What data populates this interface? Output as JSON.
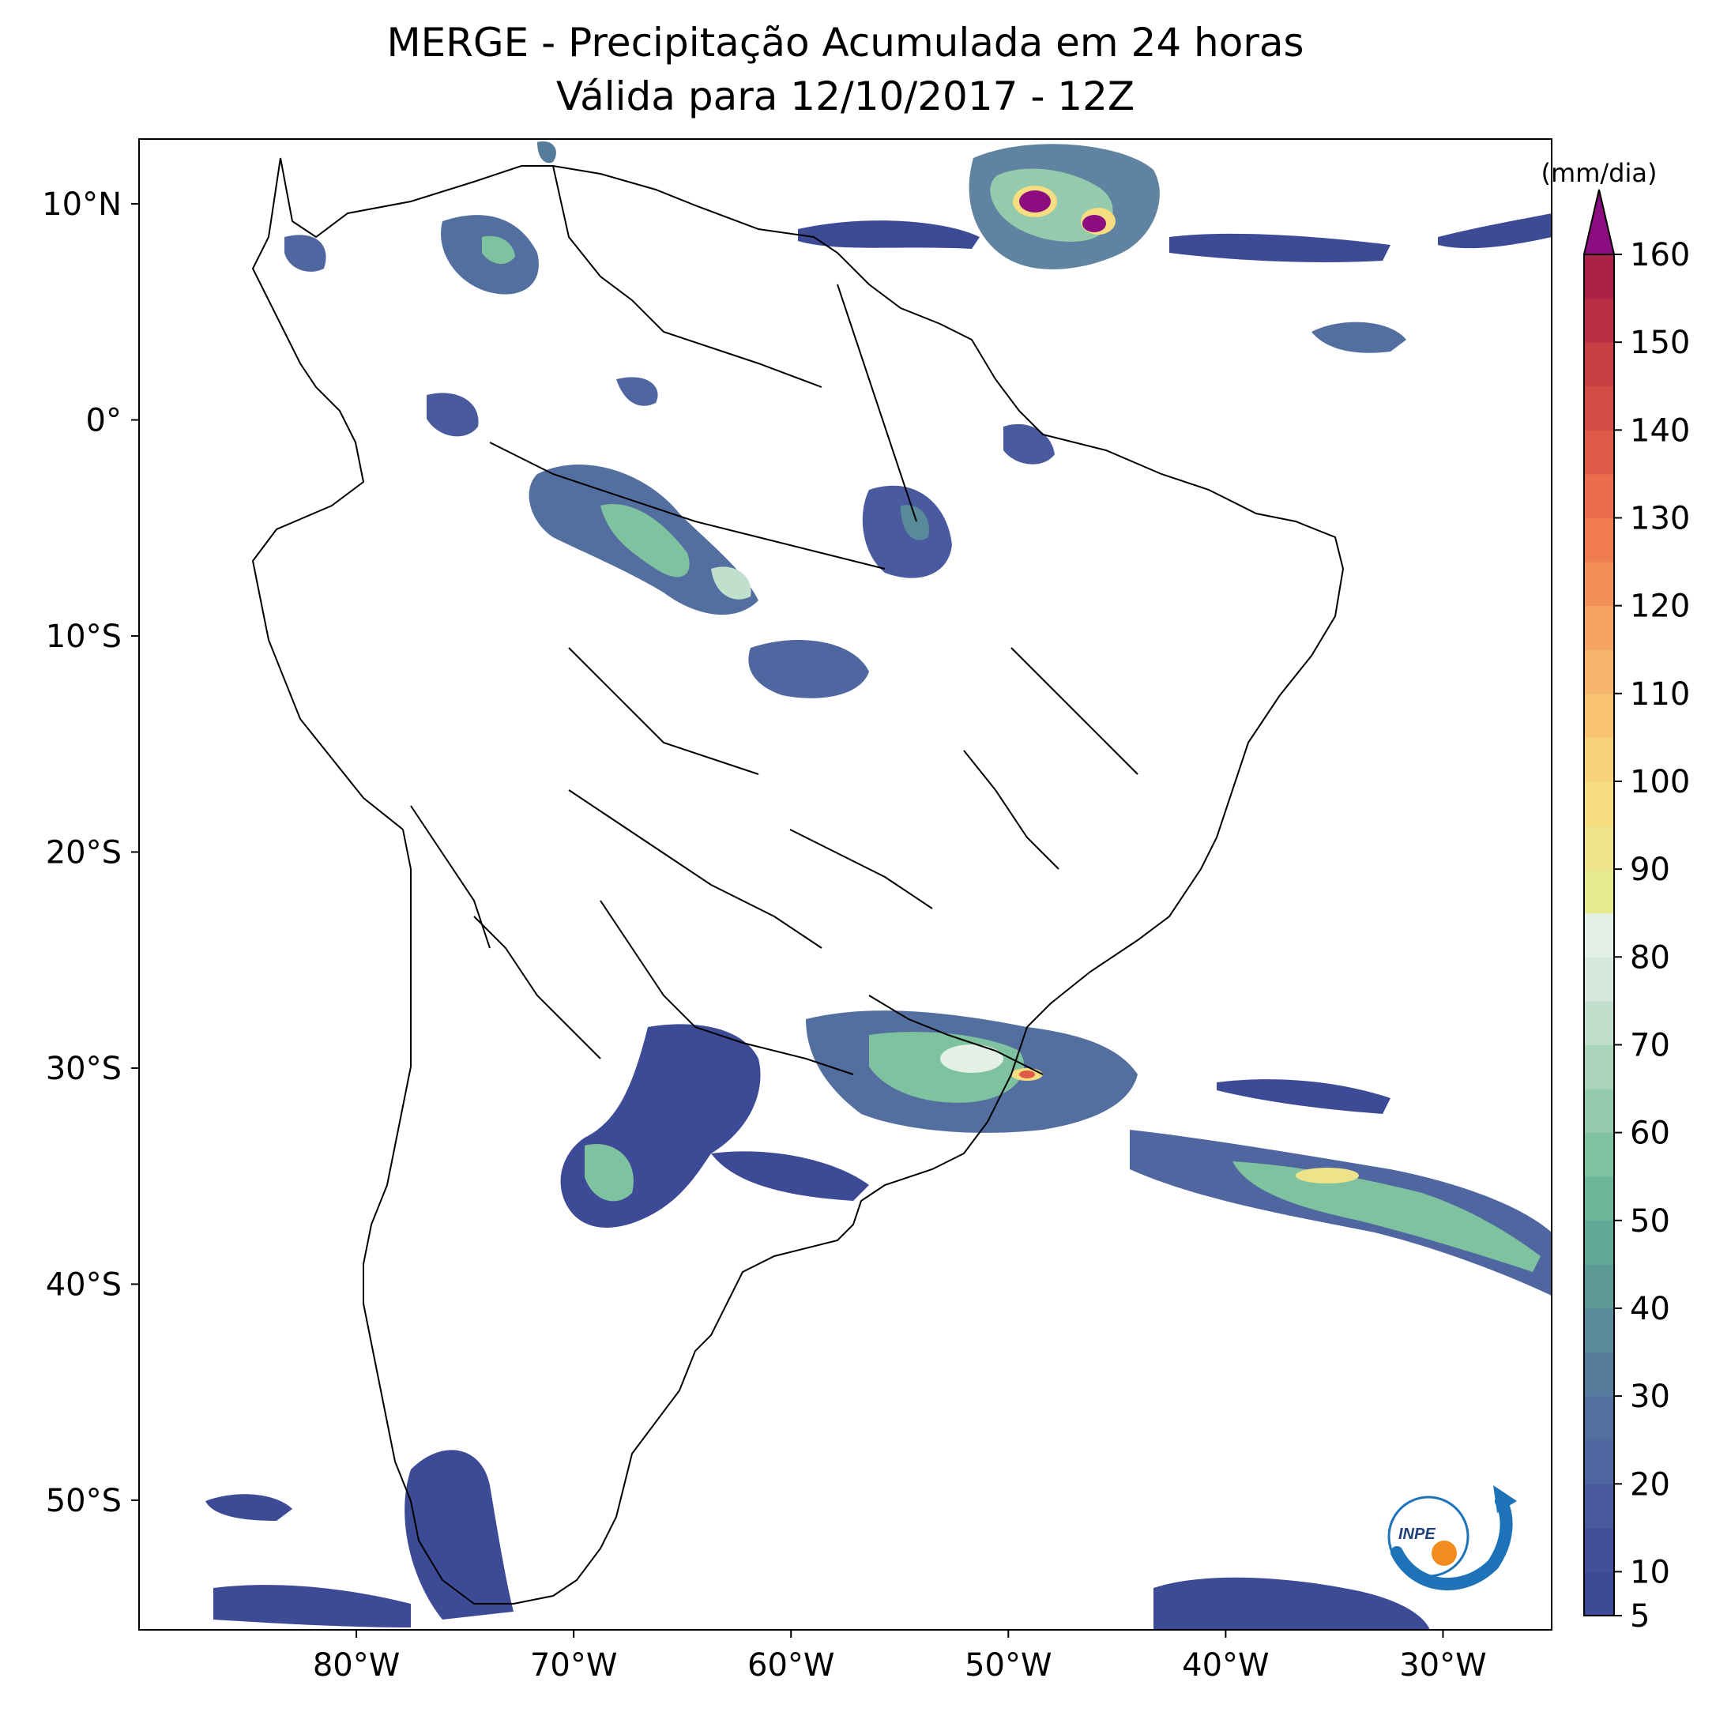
{
  "map": {
    "title": "MERGE - Precipitação Acumulada em 24 horas",
    "subtitle": "Válida para 12/10/2017 - 12Z",
    "extent": {
      "lon_min": -90,
      "lon_max": -25,
      "lat_min": -56,
      "lat_max": 13
    },
    "lat_ticks": [
      {
        "value": 10,
        "label": "10°N"
      },
      {
        "value": 0,
        "label": "0°"
      },
      {
        "value": -10,
        "label": "10°S"
      },
      {
        "value": -20,
        "label": "20°S"
      },
      {
        "value": -30,
        "label": "30°S"
      },
      {
        "value": -40,
        "label": "40°S"
      },
      {
        "value": -50,
        "label": "50°S"
      }
    ],
    "lon_ticks": [
      {
        "value": -80,
        "label": "80°W"
      },
      {
        "value": -70,
        "label": "70°W"
      },
      {
        "value": -60,
        "label": "60°W"
      },
      {
        "value": -50,
        "label": "50°W"
      },
      {
        "value": -40,
        "label": "40°W"
      },
      {
        "value": -30,
        "label": "30°W"
      }
    ],
    "logo_text": "INPE"
  },
  "colorbar": {
    "unit": "(mm/dia)",
    "min": 5,
    "max": 160,
    "extend": "max",
    "tick_labels": [
      "5",
      "10",
      "20",
      "30",
      "40",
      "50",
      "60",
      "70",
      "80",
      "90",
      "100",
      "110",
      "120",
      "130",
      "140",
      "150",
      "160"
    ],
    "levels": [
      5,
      10,
      15,
      20,
      25,
      30,
      35,
      40,
      45,
      50,
      55,
      60,
      65,
      70,
      75,
      80,
      85,
      90,
      95,
      100,
      105,
      110,
      115,
      120,
      125,
      130,
      135,
      140,
      145,
      150,
      155,
      160
    ],
    "colors": [
      "#3d4a96",
      "#434f9a",
      "#4a5a9e",
      "#4f66a0",
      "#536f9f",
      "#567c9c",
      "#588a99",
      "#5c9896",
      "#63a796",
      "#6cb596",
      "#7ec2a0",
      "#95cbac",
      "#aad5bb",
      "#c0dfcc",
      "#d6e9dc",
      "#e3f0e6",
      "#e6ea8f",
      "#eee38a",
      "#f5dd80",
      "#f8d27a",
      "#f8c474",
      "#f6b56b",
      "#f4a362",
      "#f38f58",
      "#f07b50",
      "#ea6c4a",
      "#e05b47",
      "#d54b45",
      "#c93d45",
      "#bb2e45",
      "#aa2247"
    ],
    "extend_color": "#8b0d7f"
  }
}
